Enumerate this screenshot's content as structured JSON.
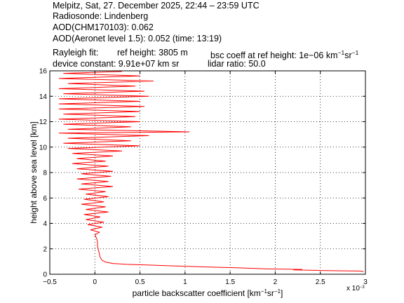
{
  "header": {
    "line1": "Melpitz, Sat, 27. December 2025, 22:44 – 23:59 UTC",
    "line2": "Radiosonde: Lindenberg",
    "line3": "AOD(CHM170103): 0.062",
    "line4": "AOD(Aeronet level 1.5): 0.052   (time: 13:19)",
    "rayleigh_label": "Rayleigh fit:",
    "ref_height": "ref height: 3805 m",
    "bsc_coeff_prefix": "bsc coeff at ref height: 1e−06 km",
    "bsc_coeff_sup1": "−1",
    "bsc_coeff_mid": "sr",
    "bsc_coeff_sup2": "−1",
    "device_constant": "device constant: 9.91e+07 km sr",
    "lidar_ratio": "lidar ratio: 50.0"
  },
  "chart_data": {
    "type": "line",
    "xlabel_prefix": "particle backscatter coefficient [km",
    "xlabel_sup1": "−1",
    "xlabel_mid": "sr",
    "xlabel_sup2": "−1",
    "xlabel_suffix": "]",
    "ylabel": "height above sea level [km]",
    "x_multiplier": "x 10",
    "x_multiplier_exp": "−3",
    "xlim": [
      -0.5,
      3.0
    ],
    "ylim": [
      0,
      16
    ],
    "xticks": [
      -0.5,
      0,
      0.5,
      1,
      1.5,
      2,
      2.5,
      3
    ],
    "xtick_labels": [
      "−0.5",
      "0",
      "0.5",
      "1",
      "1.5",
      "2",
      "2.5",
      "3"
    ],
    "yticks": [
      0,
      2,
      4,
      6,
      8,
      10,
      12,
      14,
      16
    ],
    "ytick_labels": [
      "0",
      "2",
      "4",
      "6",
      "8",
      "10",
      "12",
      "14",
      "16"
    ],
    "grid": true,
    "grid_style": "dotted",
    "series": [
      {
        "color": "#ff0000",
        "unit_note": "x values in units of 1e-3 km^-1 sr^-1, y in km",
        "points": [
          [
            2.98,
            0.2
          ],
          [
            2.95,
            0.25
          ],
          [
            2.6,
            0.28
          ],
          [
            2.2,
            0.35
          ],
          [
            2.3,
            0.38
          ],
          [
            1.9,
            0.42
          ],
          [
            1.6,
            0.5
          ],
          [
            1.2,
            0.58
          ],
          [
            0.9,
            0.65
          ],
          [
            0.6,
            0.72
          ],
          [
            0.35,
            0.78
          ],
          [
            0.2,
            0.85
          ],
          [
            0.12,
            0.95
          ],
          [
            0.08,
            1.1
          ],
          [
            0.06,
            1.3
          ],
          [
            0.05,
            1.6
          ],
          [
            0.04,
            1.9
          ],
          [
            0.03,
            2.2
          ],
          [
            0.03,
            2.5
          ],
          [
            0.02,
            2.8
          ],
          [
            0.0,
            3.1
          ],
          [
            0.05,
            3.3
          ],
          [
            -0.05,
            3.5
          ],
          [
            0.08,
            3.7
          ],
          [
            -0.08,
            3.9
          ],
          [
            0.1,
            4.1
          ],
          [
            -0.1,
            4.3
          ],
          [
            0.06,
            4.5
          ],
          [
            -0.12,
            4.7
          ],
          [
            0.15,
            4.9
          ],
          [
            -0.1,
            5.1
          ],
          [
            0.12,
            5.3
          ],
          [
            -0.15,
            5.5
          ],
          [
            0.1,
            5.7
          ],
          [
            -0.12,
            5.9
          ],
          [
            0.15,
            6.1
          ],
          [
            -0.1,
            6.3
          ],
          [
            0.12,
            6.5
          ],
          [
            -0.18,
            6.7
          ],
          [
            0.2,
            6.9
          ],
          [
            -0.15,
            7.1
          ],
          [
            0.15,
            7.3
          ],
          [
            -0.2,
            7.5
          ],
          [
            0.18,
            7.7
          ],
          [
            -0.15,
            7.9
          ],
          [
            0.2,
            8.1
          ],
          [
            -0.2,
            8.3
          ],
          [
            0.15,
            8.5
          ],
          [
            -0.25,
            8.7
          ],
          [
            0.12,
            8.9
          ],
          [
            -0.2,
            9.1
          ],
          [
            0.2,
            9.3
          ],
          [
            -0.25,
            9.5
          ],
          [
            0.3,
            9.7
          ],
          [
            -0.3,
            9.9
          ],
          [
            0.5,
            10.1
          ],
          [
            -0.35,
            10.3
          ],
          [
            0.4,
            10.5
          ],
          [
            -0.3,
            10.7
          ],
          [
            0.6,
            10.9
          ],
          [
            -0.4,
            11.1
          ],
          [
            1.05,
            11.2
          ],
          [
            -0.3,
            11.4
          ],
          [
            0.4,
            11.6
          ],
          [
            -0.35,
            11.8
          ],
          [
            0.5,
            12.0
          ],
          [
            -0.4,
            12.2
          ],
          [
            0.45,
            12.4
          ],
          [
            -0.35,
            12.6
          ],
          [
            0.5,
            12.8
          ],
          [
            -0.4,
            13.0
          ],
          [
            0.55,
            13.2
          ],
          [
            -0.4,
            13.4
          ],
          [
            0.5,
            13.6
          ],
          [
            -0.4,
            13.8
          ],
          [
            0.6,
            14.0
          ],
          [
            -0.35,
            14.2
          ],
          [
            0.55,
            14.4
          ],
          [
            -0.4,
            14.6
          ],
          [
            0.45,
            14.8
          ],
          [
            -0.3,
            15.0
          ],
          [
            0.65,
            15.2
          ],
          [
            -0.4,
            15.4
          ],
          [
            0.5,
            15.6
          ],
          [
            -0.35,
            15.8
          ],
          [
            0.3,
            15.95
          ]
        ]
      }
    ]
  }
}
